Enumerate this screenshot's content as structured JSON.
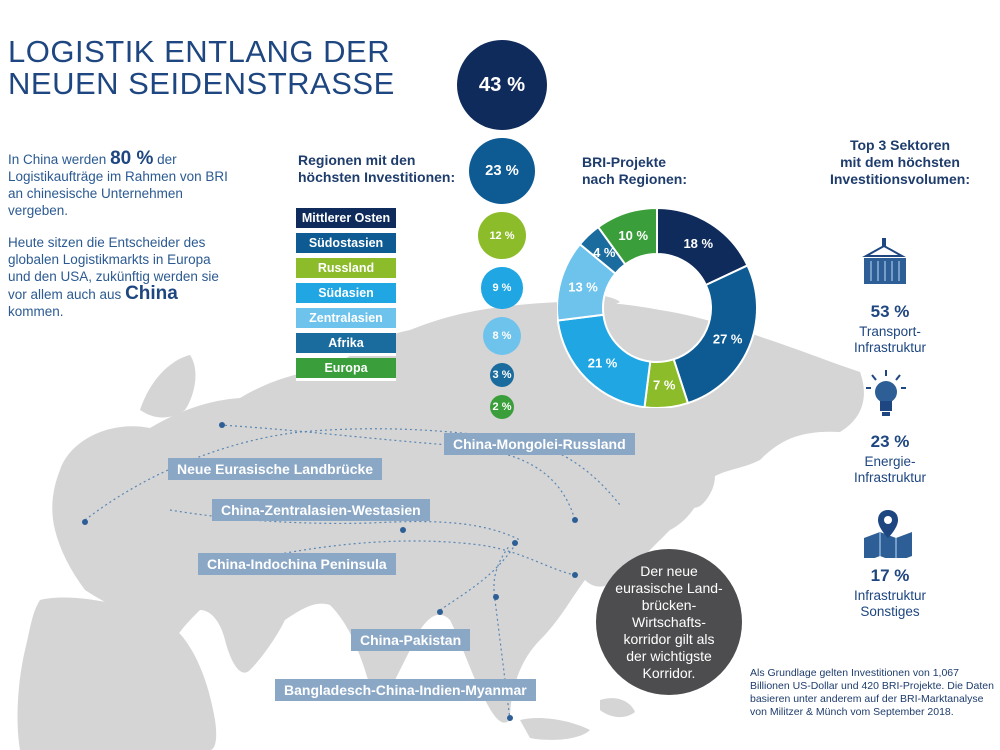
{
  "title": {
    "line1": "LOGISTIK ENTLANG DER",
    "line2": "NEUEN SEIDENSTRASSE"
  },
  "intro": {
    "p1_pre": "In China werden",
    "p1_value": "80 %",
    "p1_post": "der Logistikaufträge im Rahmen von BRI an chinesische Unternehmen vergeben.",
    "p2_pre": "Heute sitzen die Entscheider des globalen Logistikmarkts in Europa und den USA, zukünftig werden sie vor allem auch aus",
    "p2_value": "China",
    "p2_post": "kommen."
  },
  "regions_heading": {
    "line1": "Regionen mit den",
    "line2": "höchsten Investitionen:"
  },
  "projects_heading": {
    "line1": "BRI-Projekte",
    "line2": "nach Regionen:"
  },
  "sectors_heading": {
    "line1": "Top 3 Sektoren",
    "line2": "mit dem höchsten",
    "line3": "Investitionsvolumen:"
  },
  "colors": {
    "mittlerer_osten": "#0f2b5c",
    "suedostasien": "#0e5b93",
    "russland": "#8cbc2a",
    "suedasien": "#1fa6e3",
    "zentralasien": "#6ec3ec",
    "afrika": "#1a6b9e",
    "europa": "#3a9e3a",
    "map": "#d5d5d5",
    "corridor_label": "#8aa7c6"
  },
  "chart_data": [
    {
      "type": "bubble",
      "title": "Regionen mit den höchsten Investitionen:",
      "categories": [
        "Mittlerer Osten",
        "Südostasien",
        "Russland",
        "Südasien",
        "Zentralasien",
        "Afrika",
        "Europa"
      ],
      "values": [
        43,
        23,
        12,
        9,
        8,
        3,
        2
      ],
      "labels": [
        "43 %",
        "23 %",
        "12 %",
        "9 %",
        "8 %",
        "3 %",
        "2 %"
      ],
      "unit": "%"
    },
    {
      "type": "pie",
      "title": "BRI-Projekte nach Regionen:",
      "categories": [
        "Mittlerer Osten",
        "Südostasien",
        "Russland",
        "Südasien",
        "Zentralasien",
        "Afrika",
        "Europa"
      ],
      "values": [
        18,
        27,
        7,
        21,
        13,
        4,
        10
      ],
      "labels": [
        "18 %",
        "27 %",
        "7 %",
        "21 %",
        "13 %",
        "4 %",
        "10 %"
      ],
      "unit": "%",
      "donut": true
    }
  ],
  "sectors": [
    {
      "value": "53 %",
      "label1": "Transport-",
      "label2": "Infrastruktur",
      "icon": "container-crane-icon"
    },
    {
      "value": "23 %",
      "label1": "Energie-",
      "label2": "Infrastruktur",
      "icon": "lightbulb-icon"
    },
    {
      "value": "17 %",
      "label1": "Infrastruktur",
      "label2": "Sonstiges",
      "icon": "map-pin-icon"
    }
  ],
  "corridors": [
    "China-Mongolei-Russland",
    "Neue Eurasische Landbrücke",
    "China-Zentralasien-Westasien",
    "China-Indochina Peninsula",
    "China-Pakistan",
    "Bangladesch-China-Indien-Myanmar"
  ],
  "callout": "Der neue eurasische Land-brücken-Wirtschafts-korridor gilt als der wichtigste Korridor.",
  "note": "Als Grundlage gelten Investitionen von 1,067 Billionen US-Dollar und 420 BRI-Projekte. Die Daten basieren unter anderem auf der BRI-Marktanalyse von Militzer & Münch vom September 2018."
}
